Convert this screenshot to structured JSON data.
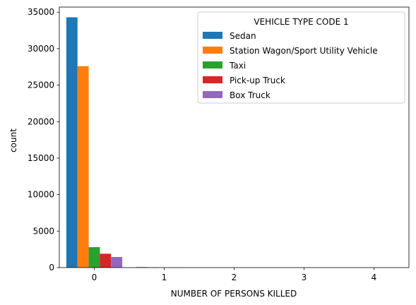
{
  "chart_data": {
    "type": "bar",
    "xlabel": "NUMBER OF PERSONS KILLED",
    "ylabel": "count",
    "categories": [
      "0",
      "1",
      "2",
      "3",
      "4"
    ],
    "ylim": [
      0,
      35700
    ],
    "yticks": [
      0,
      5000,
      10000,
      15000,
      20000,
      25000,
      30000,
      35000
    ],
    "legend": {
      "title": "VEHICLE TYPE CODE 1",
      "placement": "top-right"
    },
    "series": [
      {
        "name": "Sedan",
        "color": "#1f77b4",
        "values": [
          34300,
          70,
          2,
          1,
          0
        ]
      },
      {
        "name": "Station Wagon/Sport Utility Vehicle",
        "color": "#ff7f0e",
        "values": [
          27600,
          55,
          1,
          0,
          0
        ]
      },
      {
        "name": "Taxi",
        "color": "#2ca02c",
        "values": [
          2800,
          5,
          0,
          0,
          0
        ]
      },
      {
        "name": "Pick-up Truck",
        "color": "#d62728",
        "values": [
          1900,
          10,
          0,
          0,
          1
        ]
      },
      {
        "name": "Box Truck",
        "color": "#9467bd",
        "values": [
          1450,
          5,
          0,
          0,
          0
        ]
      }
    ]
  }
}
